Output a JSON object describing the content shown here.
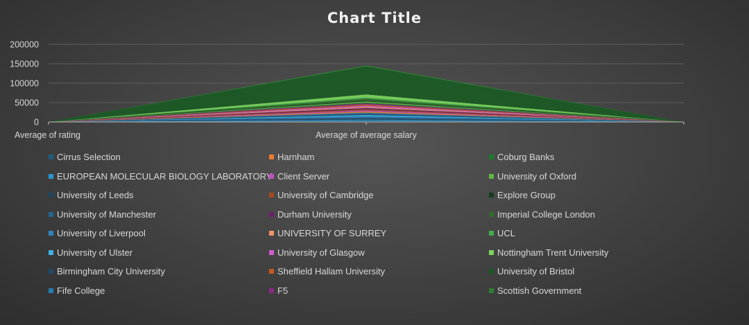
{
  "chart_data": {
    "type": "area",
    "title": "Chart Title",
    "stacked": true,
    "categories": [
      "Average of rating",
      "Average of average salary",
      ""
    ],
    "ylim": [
      0,
      200000
    ],
    "y_ticks": [
      0,
      50000,
      100000,
      150000,
      200000
    ],
    "y_tick_labels": [
      "0",
      "50000",
      "100000",
      "150000",
      "200000"
    ],
    "grid": true,
    "legend_position": "bottom",
    "series": [
      {
        "name": "Cirrus Selection",
        "color": "#1f5c80",
        "values": [
          4,
          3000,
          0
        ]
      },
      {
        "name": "EUROPEAN MOLECULAR BIOLOGY LABORATORY",
        "color": "#2a96d0",
        "values": [
          4,
          3000,
          0
        ]
      },
      {
        "name": "University of Leeds",
        "color": "#1e4662",
        "values": [
          4,
          3000,
          0
        ]
      },
      {
        "name": "University of Manchester",
        "color": "#23668e",
        "values": [
          4,
          3000,
          0
        ]
      },
      {
        "name": "University of Liverpool",
        "color": "#2c86c0",
        "values": [
          4,
          3000,
          0
        ]
      },
      {
        "name": "University of Ulster",
        "color": "#3db2e6",
        "values": [
          4,
          3000,
          0
        ]
      },
      {
        "name": "Birmingham City University",
        "color": "#1d4c6c",
        "values": [
          4,
          3000,
          0
        ]
      },
      {
        "name": "Fife College",
        "color": "#257cb0",
        "values": [
          4,
          3000,
          0
        ]
      },
      {
        "name": "Harnham",
        "color": "#ed7d31",
        "values": [
          4,
          3000,
          0
        ]
      },
      {
        "name": "Client Server",
        "color": "#c04fbf",
        "values": [
          4,
          3000,
          0
        ]
      },
      {
        "name": "University of Cambridge",
        "color": "#a8481f",
        "values": [
          4,
          3000,
          0
        ]
      },
      {
        "name": "Durham University",
        "color": "#6d1f6a",
        "values": [
          4,
          3000,
          0
        ]
      },
      {
        "name": "UNIVERSITY OF SURREY",
        "color": "#f0966a",
        "values": [
          4,
          3000,
          0
        ]
      },
      {
        "name": "University of Glasgow",
        "color": "#d45bd1",
        "values": [
          4,
          3000,
          0
        ]
      },
      {
        "name": "Sheffield Hallam University",
        "color": "#c75a20",
        "values": [
          4,
          3000,
          0
        ]
      },
      {
        "name": "F5",
        "color": "#8a2a86",
        "values": [
          4,
          3000,
          0
        ]
      },
      {
        "name": "Coburg Banks",
        "color": "#1e7a2e",
        "values": [
          4,
          2000,
          0
        ]
      },
      {
        "name": "University of Oxford",
        "color": "#5fb845",
        "values": [
          4,
          3000,
          0
        ]
      },
      {
        "name": "Explore Group",
        "color": "#163d1c",
        "values": [
          4,
          2000,
          0
        ]
      },
      {
        "name": "Imperial College London",
        "color": "#2f6e2a",
        "values": [
          4,
          5000,
          0
        ]
      },
      {
        "name": "UCL",
        "color": "#3fae4a",
        "values": [
          4,
          3000,
          0
        ]
      },
      {
        "name": "Nottingham Trent University",
        "color": "#7ad65a",
        "values": [
          4,
          8000,
          0
        ]
      },
      {
        "name": "University of Bristol",
        "color": "#1a5a24",
        "values": [
          4,
          72000,
          0
        ]
      },
      {
        "name": "Scottish Government",
        "color": "#2e7f34",
        "values": [
          4,
          3000,
          0
        ]
      }
    ]
  }
}
